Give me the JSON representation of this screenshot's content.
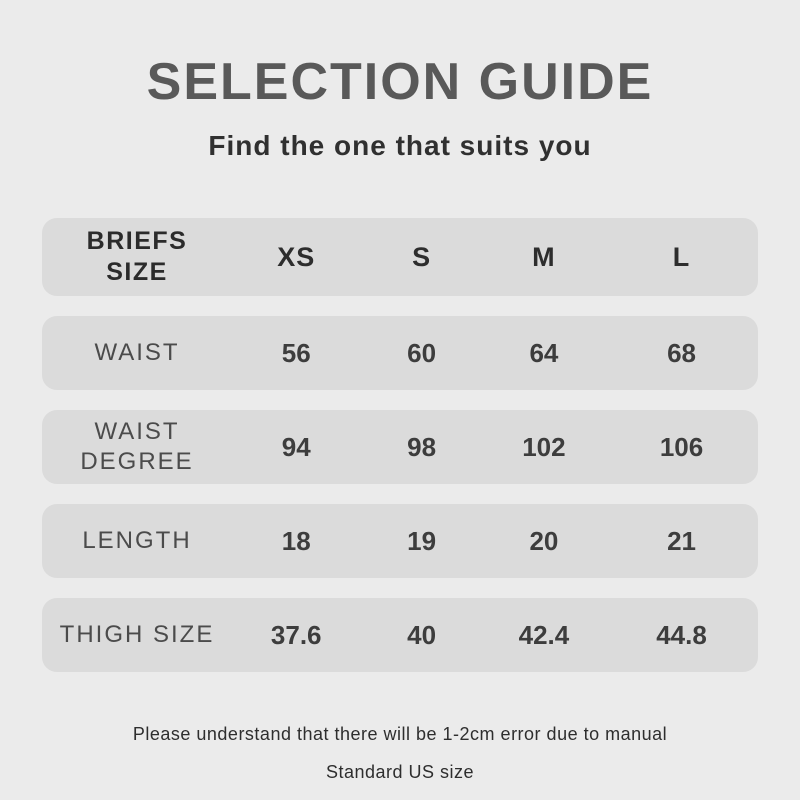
{
  "colors": {
    "page_background": "#ebebeb",
    "row_background": "#dbdbdb",
    "title_text": "#595959",
    "header_text": "#2b2b2b",
    "label_text": "#4b4b4b",
    "value_text": "#3d3d3d"
  },
  "chart_data": {
    "type": "table",
    "title": "SELECTION GUIDE",
    "subtitle": "Find the one that suits you",
    "columns": [
      "BRIEFS SIZE",
      "XS",
      "S",
      "M",
      "L"
    ],
    "rows": [
      {
        "label": "WAIST",
        "values": [
          "56",
          "60",
          "64",
          "68"
        ]
      },
      {
        "label": "WAIST DEGREE",
        "values": [
          "94",
          "98",
          "102",
          "106"
        ]
      },
      {
        "label": "LENGTH",
        "values": [
          "18",
          "19",
          "20",
          "21"
        ]
      },
      {
        "label": "THIGH SIZE",
        "values": [
          "37.6",
          "40",
          "42.4",
          "44.8"
        ]
      }
    ],
    "notes": [
      "Please understand that there will be 1-2cm error due to manual",
      "Standard US size"
    ]
  },
  "display": {
    "header_label": "BRIEFS\nSIZE",
    "row_labels": [
      "WAIST",
      "WAIST\nDEGREE",
      "LENGTH",
      "THIGH SIZE"
    ]
  }
}
